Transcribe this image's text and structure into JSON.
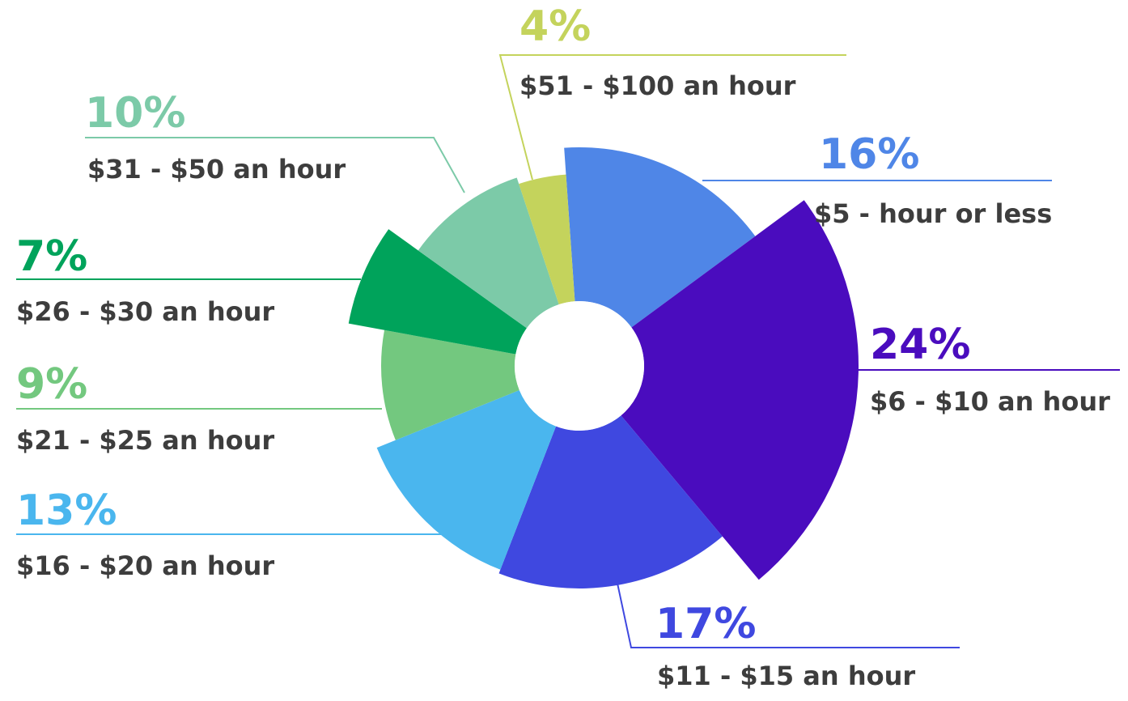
{
  "chart_data": {
    "type": "pie",
    "variant": "radial-exploded-donut",
    "title": "",
    "slices": [
      {
        "percent": 16,
        "value_label": "16%",
        "category": "$5 - hour or less",
        "color": "#4f86e7"
      },
      {
        "percent": 24,
        "value_label": "24%",
        "category": "$6 - $10 an hour",
        "color": "#4a0cbe"
      },
      {
        "percent": 17,
        "value_label": "17%",
        "category": "$11 - $15 an hour",
        "color": "#3f48e0"
      },
      {
        "percent": 13,
        "value_label": "13%",
        "category": "$16 - $20 an hour",
        "color": "#4ab6ee"
      },
      {
        "percent": 9,
        "value_label": "9%",
        "category": "$21 - $25 an hour",
        "color": "#73c87f"
      },
      {
        "percent": 7,
        "value_label": "7%",
        "category": "$26 - $30 an hour",
        "color": "#00a35b"
      },
      {
        "percent": 10,
        "value_label": "10%",
        "category": "$31 - $50 an hour",
        "color": "#7ccaa8"
      },
      {
        "percent": 4,
        "value_label": "4%",
        "category": "$51 - $100 an hour",
        "color": "#c4d35c"
      }
    ],
    "legend": "none",
    "grid": false
  }
}
